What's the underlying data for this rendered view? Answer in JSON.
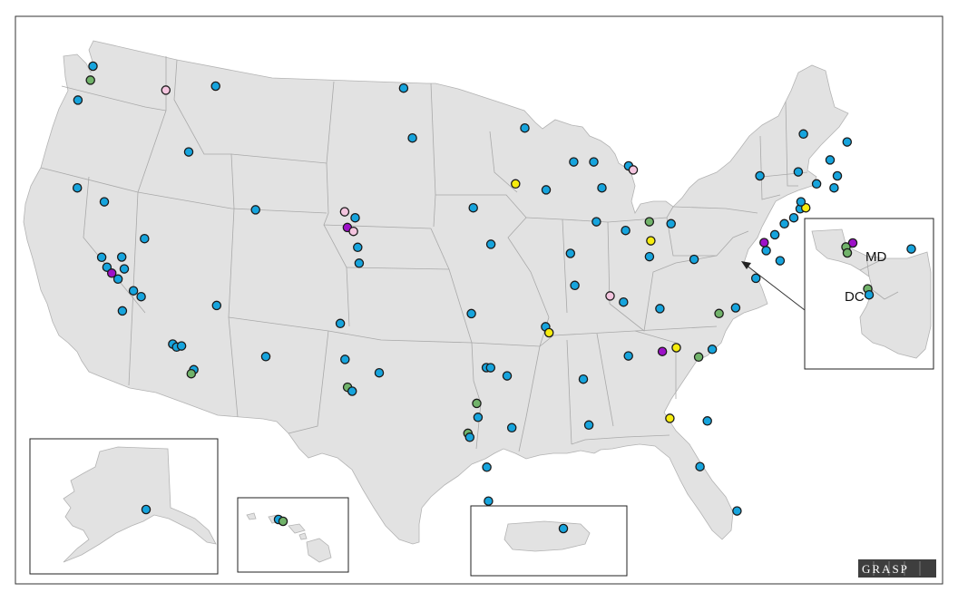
{
  "colors": {
    "blue": "#16a4dd",
    "green": "#71b36a",
    "yellow": "#f6ec0e",
    "pink": "#f4c5df",
    "purple": "#9d11c8",
    "land": "#e2e2e2",
    "border": "#a9a9a9"
  },
  "inset_labels": {
    "md": "MD",
    "dc": "DC"
  },
  "logo": {
    "text": "GRASP"
  },
  "insets": [
    "alaska-inset",
    "hawaii-inset",
    "puerto-rico-inset",
    "dc-md-inset"
  ],
  "sites": [
    {
      "c": "blue",
      "lon": -122.33,
      "lat": 47.9
    },
    {
      "c": "green",
      "lon": -122.6,
      "lat": 47.2
    },
    {
      "c": "blue",
      "lon": -123.6,
      "lat": 46.2
    },
    {
      "c": "pink",
      "lon": -117.4,
      "lat": 46.7
    },
    {
      "c": "blue",
      "lon": -113.9,
      "lat": 46.9
    },
    {
      "c": "blue",
      "lon": -116.2,
      "lat": 43.6
    },
    {
      "c": "blue",
      "lon": -124.2,
      "lat": 41.8
    },
    {
      "c": "blue",
      "lon": -122.4,
      "lat": 41.1
    },
    {
      "c": "blue",
      "lon": -119.8,
      "lat": 39.5
    },
    {
      "c": "blue",
      "lon": -122.9,
      "lat": 38.6
    },
    {
      "c": "blue",
      "lon": -122.6,
      "lat": 38.1
    },
    {
      "c": "blue",
      "lon": -121.5,
      "lat": 38.6
    },
    {
      "c": "blue",
      "lon": -121.4,
      "lat": 38.0
    },
    {
      "c": "purple",
      "lon": -122.3,
      "lat": 37.8
    },
    {
      "c": "blue",
      "lon": -121.9,
      "lat": 37.5
    },
    {
      "c": "blue",
      "lon": -120.9,
      "lat": 36.9
    },
    {
      "c": "blue",
      "lon": -120.4,
      "lat": 36.6
    },
    {
      "c": "blue",
      "lon": -121.8,
      "lat": 35.9
    },
    {
      "c": "blue",
      "lon": -115.2,
      "lat": 36.1
    },
    {
      "c": "blue",
      "lon": -118.5,
      "lat": 34.2
    },
    {
      "c": "blue",
      "lon": -118.25,
      "lat": 34.05
    },
    {
      "c": "blue",
      "lon": -117.9,
      "lat": 34.1
    },
    {
      "c": "blue",
      "lon": -117.2,
      "lat": 32.9
    },
    {
      "c": "green",
      "lon": -117.4,
      "lat": 32.7
    },
    {
      "c": "blue",
      "lon": -111.9,
      "lat": 40.7
    },
    {
      "c": "pink",
      "lon": -105.7,
      "lat": 40.6
    },
    {
      "c": "blue",
      "lon": -105.0,
      "lat": 40.3
    },
    {
      "c": "purple",
      "lon": -105.6,
      "lat": 39.9
    },
    {
      "c": "pink",
      "lon": -105.2,
      "lat": 39.7
    },
    {
      "c": "blue",
      "lon": -105.0,
      "lat": 38.9
    },
    {
      "c": "blue",
      "lon": -105.0,
      "lat": 38.1
    },
    {
      "c": "blue",
      "lon": -112.1,
      "lat": 33.5
    },
    {
      "c": "blue",
      "lon": -106.7,
      "lat": 35.1
    },
    {
      "c": "blue",
      "lon": -106.6,
      "lat": 33.3
    },
    {
      "c": "blue",
      "lon": -104.3,
      "lat": 32.6
    },
    {
      "c": "green",
      "lon": -106.6,
      "lat": 31.9
    },
    {
      "c": "blue",
      "lon": -106.3,
      "lat": 31.7
    },
    {
      "c": "blue",
      "lon": -100.8,
      "lat": 46.8
    },
    {
      "c": "blue",
      "lon": -100.5,
      "lat": 44.3
    },
    {
      "c": "blue",
      "lon": -96.7,
      "lat": 40.8
    },
    {
      "c": "blue",
      "lon": -95.7,
      "lat": 39.0
    },
    {
      "c": "blue",
      "lon": -97.5,
      "lat": 35.5
    },
    {
      "c": "blue",
      "lon": -96.8,
      "lat": 32.8
    },
    {
      "c": "blue",
      "lon": -96.5,
      "lat": 32.8
    },
    {
      "c": "blue",
      "lon": -95.4,
      "lat": 32.4
    },
    {
      "c": "green",
      "lon": -97.7,
      "lat": 31.0
    },
    {
      "c": "blue",
      "lon": -97.7,
      "lat": 30.3
    },
    {
      "c": "green",
      "lon": -98.5,
      "lat": 29.5
    },
    {
      "c": "blue",
      "lon": -98.4,
      "lat": 29.3
    },
    {
      "c": "blue",
      "lon": -95.4,
      "lat": 29.8
    },
    {
      "c": "blue",
      "lon": -97.4,
      "lat": 27.8
    },
    {
      "c": "blue",
      "lon": -97.5,
      "lat": 26.1
    },
    {
      "c": "blue",
      "lon": -92.6,
      "lat": 44.8
    },
    {
      "c": "yellow",
      "lon": -93.6,
      "lat": 42.0
    },
    {
      "c": "blue",
      "lon": -91.5,
      "lat": 41.7
    },
    {
      "c": "blue",
      "lon": -90.2,
      "lat": 38.6
    },
    {
      "c": "blue",
      "lon": -89.4,
      "lat": 43.1
    },
    {
      "c": "blue",
      "lon": -88.0,
      "lat": 43.1
    },
    {
      "c": "blue",
      "lon": -87.6,
      "lat": 41.8
    },
    {
      "c": "blue",
      "lon": -88.2,
      "lat": 40.1
    },
    {
      "c": "blue",
      "lon": -90.1,
      "lat": 37.0
    },
    {
      "c": "blue",
      "lon": -92.4,
      "lat": 34.9
    },
    {
      "c": "yellow",
      "lon": -92.2,
      "lat": 34.6
    },
    {
      "c": "blue",
      "lon": -90.1,
      "lat": 32.3
    },
    {
      "c": "blue",
      "lon": -90.0,
      "lat": 30.0
    },
    {
      "c": "blue",
      "lon": -85.6,
      "lat": 42.9
    },
    {
      "c": "pink",
      "lon": -85.3,
      "lat": 42.7
    },
    {
      "c": "blue",
      "lon": -86.2,
      "lat": 39.8
    },
    {
      "c": "green",
      "lon": -84.5,
      "lat": 40.1
    },
    {
      "c": "yellow",
      "lon": -84.5,
      "lat": 39.3
    },
    {
      "c": "blue",
      "lon": -84.7,
      "lat": 38.5
    },
    {
      "c": "blue",
      "lon": -83.0,
      "lat": 40.0
    },
    {
      "c": "pink",
      "lon": -87.7,
      "lat": 36.5
    },
    {
      "c": "blue",
      "lon": -86.8,
      "lat": 36.2
    },
    {
      "c": "blue",
      "lon": -84.3,
      "lat": 35.9
    },
    {
      "c": "blue",
      "lon": -81.6,
      "lat": 38.4
    },
    {
      "c": "blue",
      "lon": -86.8,
      "lat": 33.5
    },
    {
      "c": "purple",
      "lon": -84.4,
      "lat": 33.75
    },
    {
      "c": "yellow",
      "lon": -83.4,
      "lat": 33.95
    },
    {
      "c": "green",
      "lon": -81.9,
      "lat": 33.5
    },
    {
      "c": "blue",
      "lon": -80.9,
      "lat": 33.9
    },
    {
      "c": "green",
      "lon": -80.2,
      "lat": 35.7
    },
    {
      "c": "blue",
      "lon": -79.0,
      "lat": 36.0
    },
    {
      "c": "blue",
      "lon": -77.4,
      "lat": 37.5
    },
    {
      "c": "blue",
      "lon": -81.7,
      "lat": 30.3
    },
    {
      "c": "yellow",
      "lon": -84.3,
      "lat": 30.4
    },
    {
      "c": "blue",
      "lon": -82.5,
      "lat": 28.0
    },
    {
      "c": "blue",
      "lon": -80.2,
      "lat": 25.8
    },
    {
      "c": "purple",
      "lon": -76.6,
      "lat": 39.3
    },
    {
      "c": "blue",
      "lon": -76.5,
      "lat": 38.9
    },
    {
      "c": "blue",
      "lon": -75.8,
      "lat": 39.7
    },
    {
      "c": "blue",
      "lon": -75.1,
      "lat": 40.0
    },
    {
      "c": "blue",
      "lon": -74.4,
      "lat": 40.3
    },
    {
      "c": "blue",
      "lon": -73.9,
      "lat": 40.75
    },
    {
      "c": "yellow",
      "lon": -73.5,
      "lat": 40.8
    },
    {
      "c": "blue",
      "lon": -73.8,
      "lat": 41.1
    },
    {
      "c": "blue",
      "lon": -73.8,
      "lat": 42.6
    },
    {
      "c": "blue",
      "lon": -76.5,
      "lat": 42.4
    },
    {
      "c": "blue",
      "lon": -73.2,
      "lat": 44.5
    },
    {
      "c": "blue",
      "lon": -72.6,
      "lat": 42.0
    },
    {
      "c": "blue",
      "lon": -71.1,
      "lat": 42.4
    },
    {
      "c": "blue",
      "lon": -71.4,
      "lat": 41.8
    },
    {
      "c": "blue",
      "lon": -71.5,
      "lat": 43.2
    },
    {
      "c": "blue",
      "lon": -70.2,
      "lat": 44.1
    },
    {
      "c": "blue",
      "lon": -75.6,
      "lat": 38.4
    }
  ],
  "inset_sites": [
    {
      "inset": "alaska",
      "c": "blue",
      "lon": -149.9,
      "lat": 61.2
    },
    {
      "inset": "hawaii",
      "c": "blue",
      "lon": -157.9,
      "lat": 21.4
    },
    {
      "inset": "hawaii",
      "c": "green",
      "lon": -157.7,
      "lat": 21.3
    },
    {
      "inset": "puerto-rico",
      "c": "blue",
      "lon": -66.5,
      "lat": 18.2
    },
    {
      "inset": "dc-md",
      "c": "purple",
      "lon": -76.98,
      "lat": 39.05
    },
    {
      "inset": "dc-md",
      "c": "green",
      "lon": -77.03,
      "lat": 39.03
    },
    {
      "inset": "dc-md",
      "c": "green",
      "lon": -77.02,
      "lat": 39.0
    },
    {
      "inset": "dc-md",
      "c": "blue",
      "lon": -76.55,
      "lat": 39.02
    },
    {
      "inset": "dc-md",
      "c": "green",
      "lon": -76.87,
      "lat": 38.82
    },
    {
      "inset": "dc-md",
      "c": "blue",
      "lon": -76.86,
      "lat": 38.79
    }
  ]
}
